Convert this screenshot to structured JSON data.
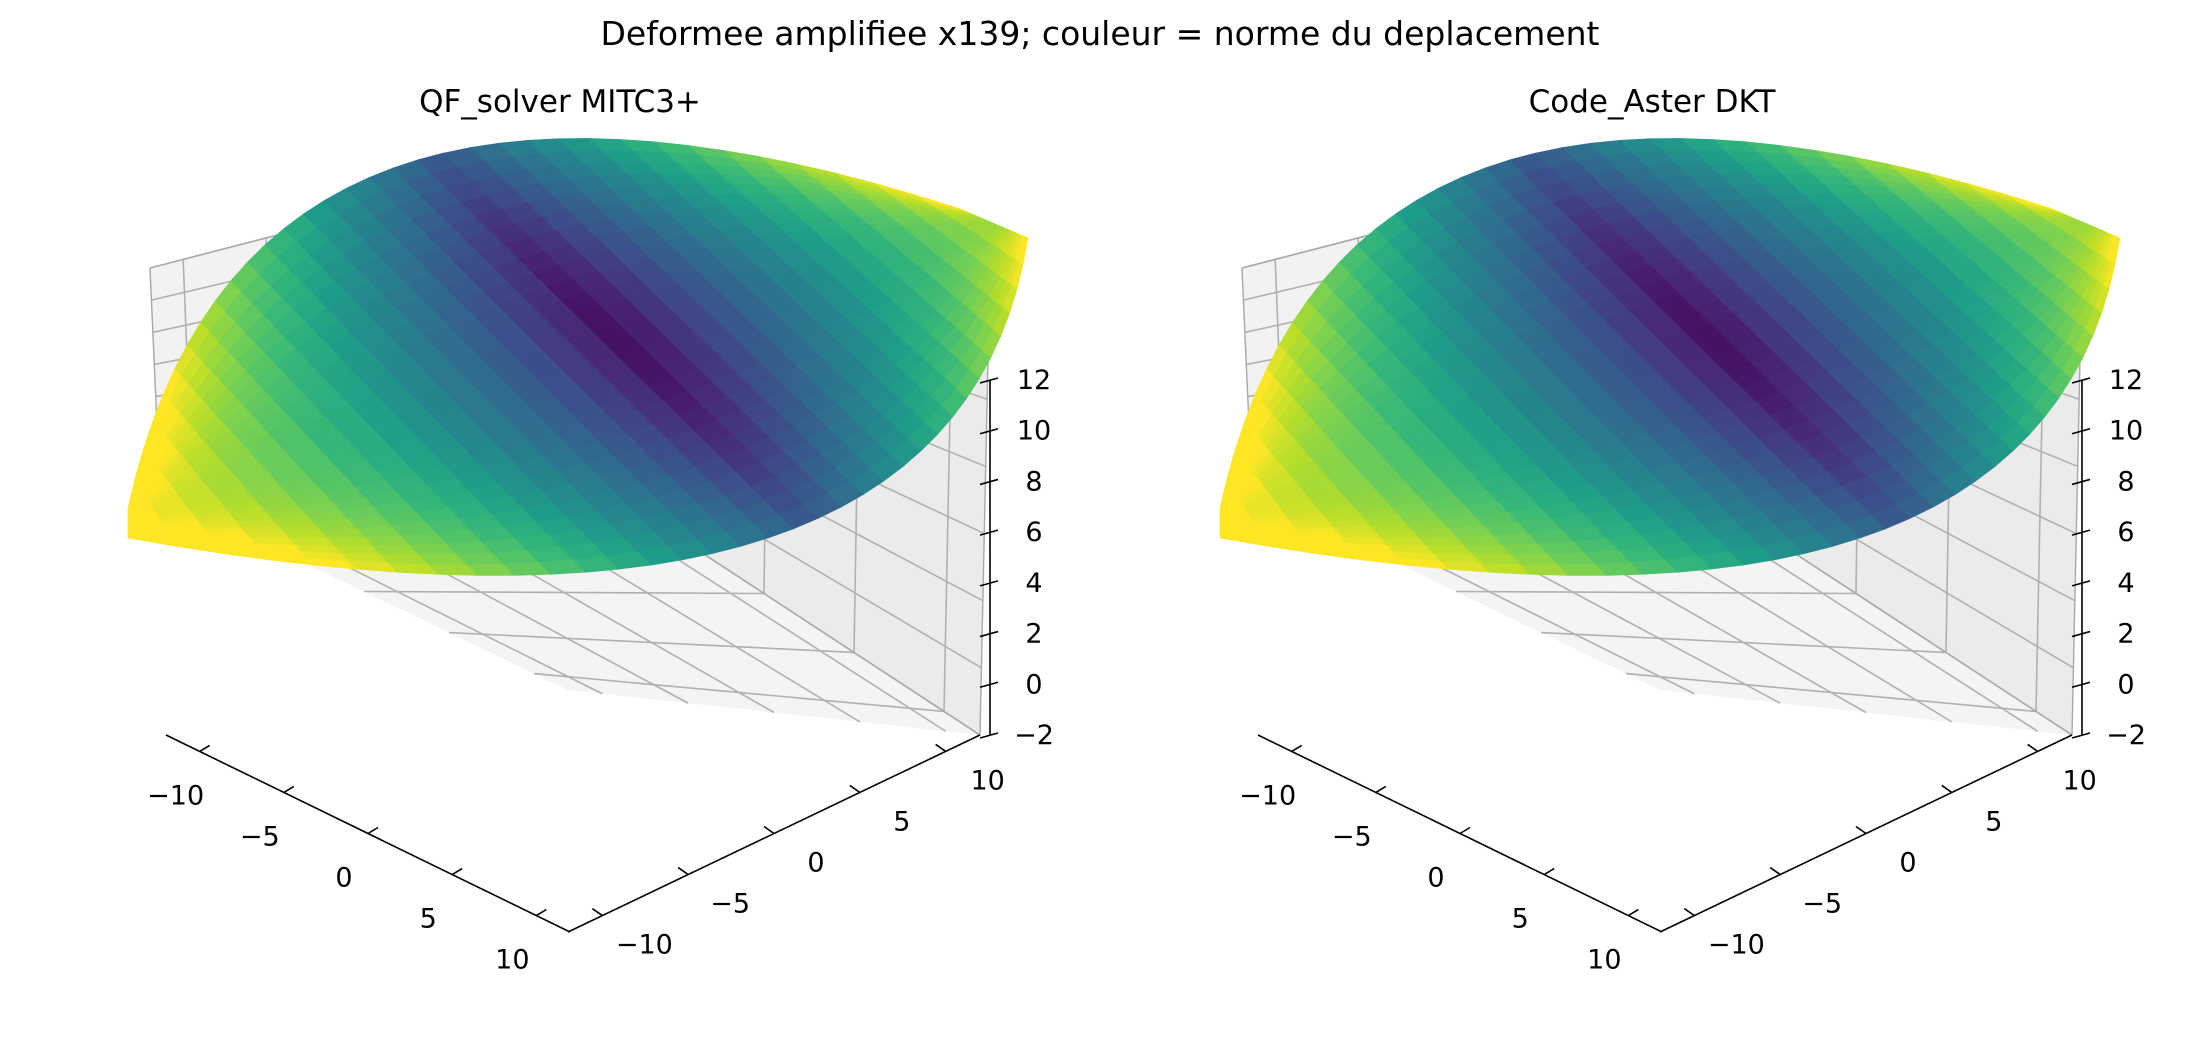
{
  "figure": {
    "suptitle": "Deformee amplifiee x139; couleur = norme du deplacement"
  },
  "chart_data": [
    {
      "type": "surface3d",
      "title": "QF_solver MITC3+",
      "xlabel": "",
      "ylabel": "",
      "zlabel": "",
      "x_ticks": [
        -10,
        -5,
        0,
        5,
        10
      ],
      "y_ticks": [
        -10,
        -5,
        0,
        5,
        10
      ],
      "z_ticks": [
        -2,
        0,
        2,
        4,
        6,
        8,
        10,
        12
      ],
      "x_tick_labels": [
        "−10",
        "−5",
        "0",
        "5",
        "10"
      ],
      "y_tick_labels": [
        "−10",
        "−5",
        "0",
        "5",
        "10"
      ],
      "z_tick_labels": [
        "−2",
        "0",
        "2",
        "4",
        "6",
        "8",
        "10",
        "12"
      ],
      "xlim": [
        -12,
        12
      ],
      "ylim": [
        -12,
        12
      ],
      "zlim": [
        -2,
        12
      ],
      "grid": true,
      "colormap": "viridis",
      "surface": "cylindrical shell panel, amplified deformed shape, color = displacement norm (low at center, high at the free corners)"
    },
    {
      "type": "surface3d",
      "title": "Code_Aster DKT",
      "xlabel": "",
      "ylabel": "",
      "zlabel": "",
      "x_ticks": [
        -10,
        -5,
        0,
        5,
        10
      ],
      "y_ticks": [
        -10,
        -5,
        0,
        5,
        10
      ],
      "z_ticks": [
        -2,
        0,
        2,
        4,
        6,
        8,
        10,
        12
      ],
      "x_tick_labels": [
        "−10",
        "−5",
        "0",
        "5",
        "10"
      ],
      "y_tick_labels": [
        "−10",
        "−5",
        "0",
        "5",
        "10"
      ],
      "z_tick_labels": [
        "−2",
        "0",
        "2",
        "4",
        "6",
        "8",
        "10",
        "12"
      ],
      "xlim": [
        -12,
        12
      ],
      "ylim": [
        -12,
        12
      ],
      "zlim": [
        -2,
        12
      ],
      "grid": true,
      "colormap": "viridis",
      "surface": "cylindrical shell panel, amplified deformed shape, color = displacement norm (low at center, high at the free corners)"
    }
  ]
}
